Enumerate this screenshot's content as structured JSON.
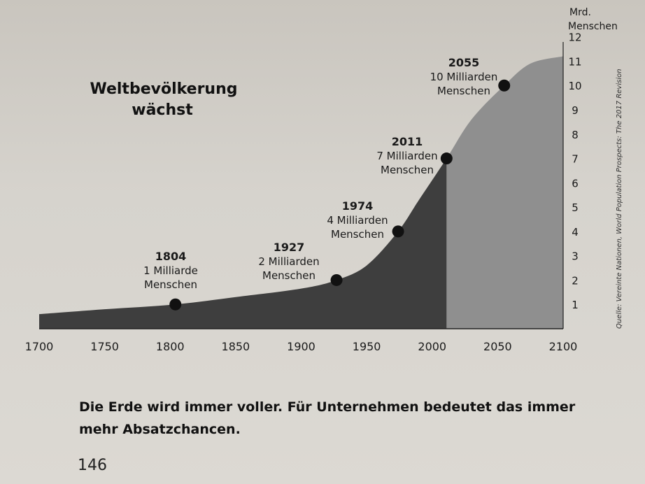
{
  "chart_data": {
    "type": "area",
    "title": "Weltbevölkerung wächst",
    "ylabel": "Mrd. Menschen",
    "xlim": [
      1700,
      2100
    ],
    "ylim": [
      0,
      12
    ],
    "x_ticks": [
      1700,
      1750,
      1800,
      1850,
      1900,
      1950,
      2000,
      2050,
      2100
    ],
    "y_ticks": [
      1,
      2,
      3,
      4,
      5,
      6,
      7,
      8,
      9,
      10,
      11,
      12
    ],
    "projection_start": 2011,
    "series": [
      {
        "x": [
          1700,
          1750,
          1804,
          1850,
          1900,
          1927,
          1950,
          1974,
          1990,
          2011,
          2030,
          2055,
          2075,
          2100
        ],
        "values": [
          0.6,
          0.8,
          1.0,
          1.3,
          1.65,
          2.0,
          2.6,
          4.0,
          5.3,
          7.0,
          8.6,
          10.0,
          10.9,
          11.2
        ]
      }
    ],
    "annotations": [
      {
        "year": "1804",
        "value": 1,
        "line1": "1 Milliarde",
        "line2": "Menschen"
      },
      {
        "year": "1927",
        "value": 2,
        "line1": "2 Milliarden",
        "line2": "Menschen"
      },
      {
        "year": "1974",
        "value": 4,
        "line1": "4 Milliarden",
        "line2": "Menschen"
      },
      {
        "year": "2011",
        "value": 7,
        "line1": "7 Milliarden",
        "line2": "Menschen"
      },
      {
        "year": "2055",
        "value": 10,
        "line1": "10 Milliarden",
        "line2": "Menschen"
      }
    ],
    "colors": {
      "historic": "#3e3e3e",
      "projection": "#8f8f8f",
      "dot": "#111111"
    }
  },
  "caption": "Die Erde wird immer voller. Für Unternehmen bedeutet das immer mehr Absatzchancen.",
  "page_number": "146",
  "source": "Quelle: Vereinte Nationen, World Population Prospects: The 2017 Revision"
}
